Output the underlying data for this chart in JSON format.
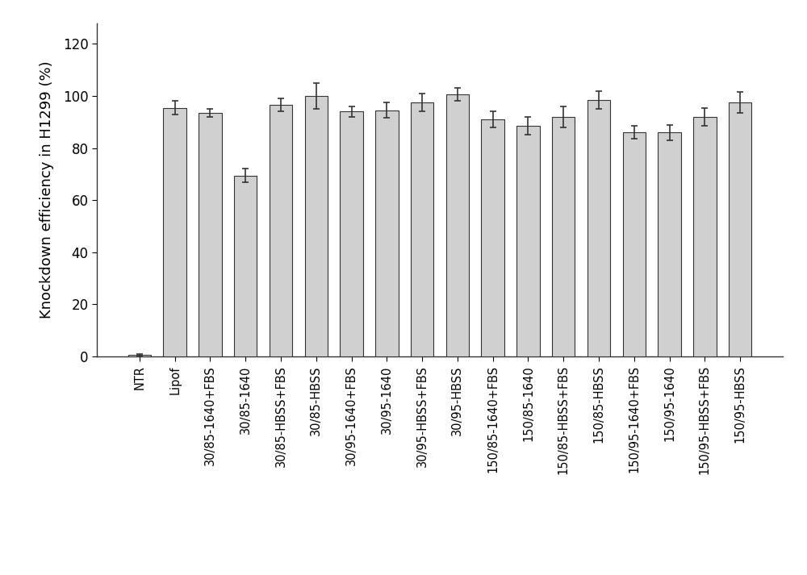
{
  "categories": [
    "NTR",
    "Lipof",
    "30/85-1640+FBS",
    "30/85-1640",
    "30/85-HBSS+FBS",
    "30/85-HBSS",
    "30/95-1640+FBS",
    "30/95-1640",
    "30/95-HBSS+FBS",
    "30/95-HBSS",
    "150/85-1640+FBS",
    "150/85-1640",
    "150/85-HBSS+FBS",
    "150/85-HBSS",
    "150/95-1640+FBS",
    "150/95-1640",
    "150/95-HBSS+FBS",
    "150/95-HBSS"
  ],
  "values": [
    0.5,
    95.5,
    93.5,
    69.5,
    96.5,
    100.0,
    94.0,
    94.5,
    97.5,
    100.5,
    91.0,
    88.5,
    92.0,
    98.5,
    86.0,
    86.0,
    92.0,
    97.5
  ],
  "errors": [
    0.5,
    2.5,
    1.5,
    2.5,
    2.5,
    5.0,
    2.0,
    3.0,
    3.5,
    2.5,
    3.0,
    3.5,
    4.0,
    3.5,
    2.5,
    3.0,
    3.5,
    4.0
  ],
  "bar_color": "#d0d0d0",
  "bar_edge_color": "#333333",
  "error_color": "#333333",
  "ylabel": "Knockdown efficiency in H1299 (%)",
  "ylim": [
    0,
    128
  ],
  "yticks": [
    0,
    20,
    40,
    60,
    80,
    100,
    120
  ],
  "bar_width": 0.65,
  "tick_fontsize": 12,
  "label_fontsize": 13,
  "xtick_fontsize": 10.5
}
